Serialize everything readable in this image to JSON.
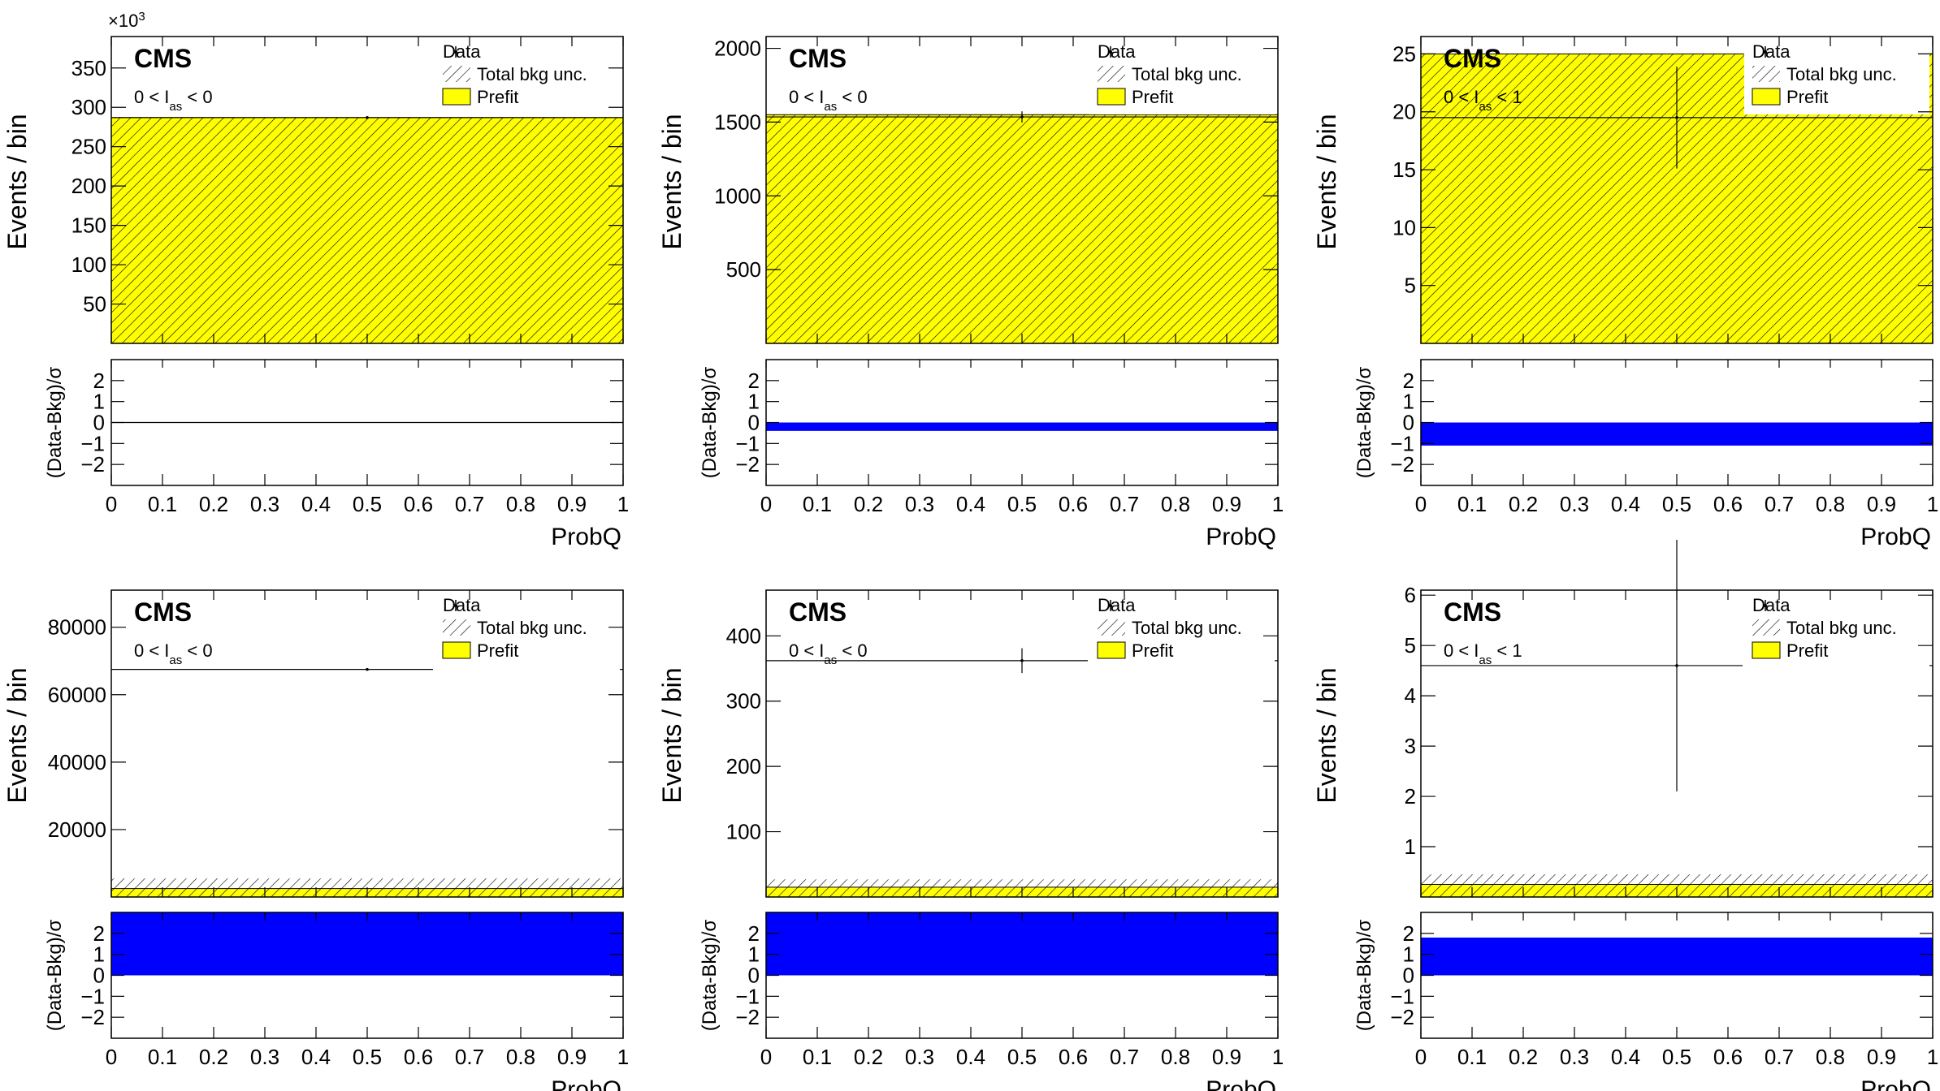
{
  "figure": {
    "experiment_label": "CMS",
    "legend": {
      "data": "Data",
      "unc": "Total bkg unc.",
      "prefit": "Prefit"
    },
    "colors": {
      "prefit_fill": "#ffff00",
      "pull_fill": "#0000ff",
      "frame": "#000000"
    },
    "common": {
      "xlabel": "ProbQ",
      "ylabel_main": "Events / bin",
      "ylabel_ratio": "(Data-Bkg)/σ",
      "xlim": [
        0,
        1
      ],
      "xticks": [
        0,
        0.1,
        0.2,
        0.3,
        0.4,
        0.5,
        0.6,
        0.7,
        0.8,
        0.9,
        1
      ],
      "xtick_labels": [
        "0",
        "0.1",
        "0.2",
        "0.3",
        "0.4",
        "0.5",
        "0.6",
        "0.7",
        "0.8",
        "0.9",
        "1"
      ],
      "ratio_ylim": [
        -3,
        3
      ],
      "ratio_ticks": [
        -2,
        -1,
        0,
        1,
        2
      ],
      "ratio_tick_labels": [
        "−2",
        "−1",
        "0",
        "1",
        "2"
      ]
    }
  },
  "chart_data": [
    {
      "type": "bar",
      "panel": "top-left",
      "category_label": {
        "pre": "0 < I",
        "sub": "as",
        "post": " < 0"
      },
      "exponent_label": "×10",
      "exponent_sup": "3",
      "ylim": [
        0,
        390000
      ],
      "yticks": [
        50000,
        100000,
        150000,
        200000,
        250000,
        300000,
        350000
      ],
      "ytick_labels": [
        "50",
        "100",
        "150",
        "200",
        "250",
        "300",
        "350"
      ],
      "bins": [
        0,
        1
      ],
      "prefit": [
        287000
      ],
      "unc_band": [
        [
          0,
          287000
        ]
      ],
      "data": {
        "x": 0.5,
        "y": 287000,
        "err": 0
      },
      "data_line": {
        "y": 287000
      },
      "pull": [
        0
      ]
    },
    {
      "type": "bar",
      "panel": "top-middle",
      "category_label": {
        "pre": "0 < I",
        "sub": "as",
        "post": " < 0"
      },
      "ylim": [
        0,
        2080
      ],
      "yticks": [
        500,
        1000,
        1500,
        2000
      ],
      "ytick_labels": [
        "500",
        "1000",
        "1500",
        "2000"
      ],
      "bins": [
        0,
        1
      ],
      "prefit": [
        1550
      ],
      "unc_band": [
        [
          0,
          1550
        ]
      ],
      "data": {
        "x": 0.5,
        "y": 1535,
        "err": 38
      },
      "data_line": {
        "y": 1535
      },
      "pull": [
        -0.4
      ]
    },
    {
      "type": "bar",
      "panel": "top-right",
      "category_label": {
        "pre": "0 < I",
        "sub": "as",
        "post": " < 1"
      },
      "ylim": [
        0,
        26.5
      ],
      "yticks": [
        5,
        10,
        15,
        20,
        25
      ],
      "ytick_labels": [
        "5",
        "10",
        "15",
        "20",
        "25"
      ],
      "bins": [
        0,
        1
      ],
      "prefit": [
        25
      ],
      "unc_band": [
        [
          0,
          25
        ]
      ],
      "data": {
        "x": 0.5,
        "y": 19.5,
        "err": 4.4
      },
      "data_line": {
        "y": 19.5
      },
      "pull": [
        -1.1
      ]
    },
    {
      "type": "bar",
      "panel": "bottom-left",
      "category_label": {
        "pre": "0 < I",
        "sub": "as",
        "post": " < 0"
      },
      "ylim": [
        0,
        91000
      ],
      "yticks": [
        20000,
        40000,
        60000,
        80000
      ],
      "ytick_labels": [
        "20000",
        "40000",
        "60000",
        "80000"
      ],
      "bins": [
        0,
        1
      ],
      "prefit": [
        2500
      ],
      "unc_band": [
        [
          0,
          5500
        ]
      ],
      "data": {
        "x": 0.5,
        "y": 67500,
        "err": 260
      },
      "data_line": {
        "y": 67500
      },
      "pull": [
        3
      ]
    },
    {
      "type": "bar",
      "panel": "bottom-middle",
      "category_label": {
        "pre": "0 < I",
        "sub": "as",
        "post": " < 0"
      },
      "ylim": [
        0,
        470
      ],
      "yticks": [
        100,
        200,
        300,
        400
      ],
      "ytick_labels": [
        "100",
        "200",
        "300",
        "400"
      ],
      "bins": [
        0,
        1
      ],
      "prefit": [
        15
      ],
      "unc_band": [
        [
          0,
          27
        ]
      ],
      "data": {
        "x": 0.5,
        "y": 362,
        "err": 19
      },
      "data_line": {
        "y": 362
      },
      "pull": [
        3
      ]
    },
    {
      "type": "bar",
      "panel": "bottom-right",
      "category_label": {
        "pre": "0 < I",
        "sub": "as",
        "post": " < 1"
      },
      "ylim": [
        0,
        6.1
      ],
      "yticks": [
        1,
        2,
        3,
        4,
        5,
        6
      ],
      "ytick_labels": [
        "1",
        "2",
        "3",
        "4",
        "5",
        "6"
      ],
      "bins": [
        0,
        1
      ],
      "prefit": [
        0.25
      ],
      "unc_band": [
        [
          0,
          0.45
        ]
      ],
      "data": {
        "x": 0.5,
        "y": 4.6,
        "err": 2.5
      },
      "data_line": {
        "y": 4.6
      },
      "pull": [
        1.8
      ]
    }
  ]
}
